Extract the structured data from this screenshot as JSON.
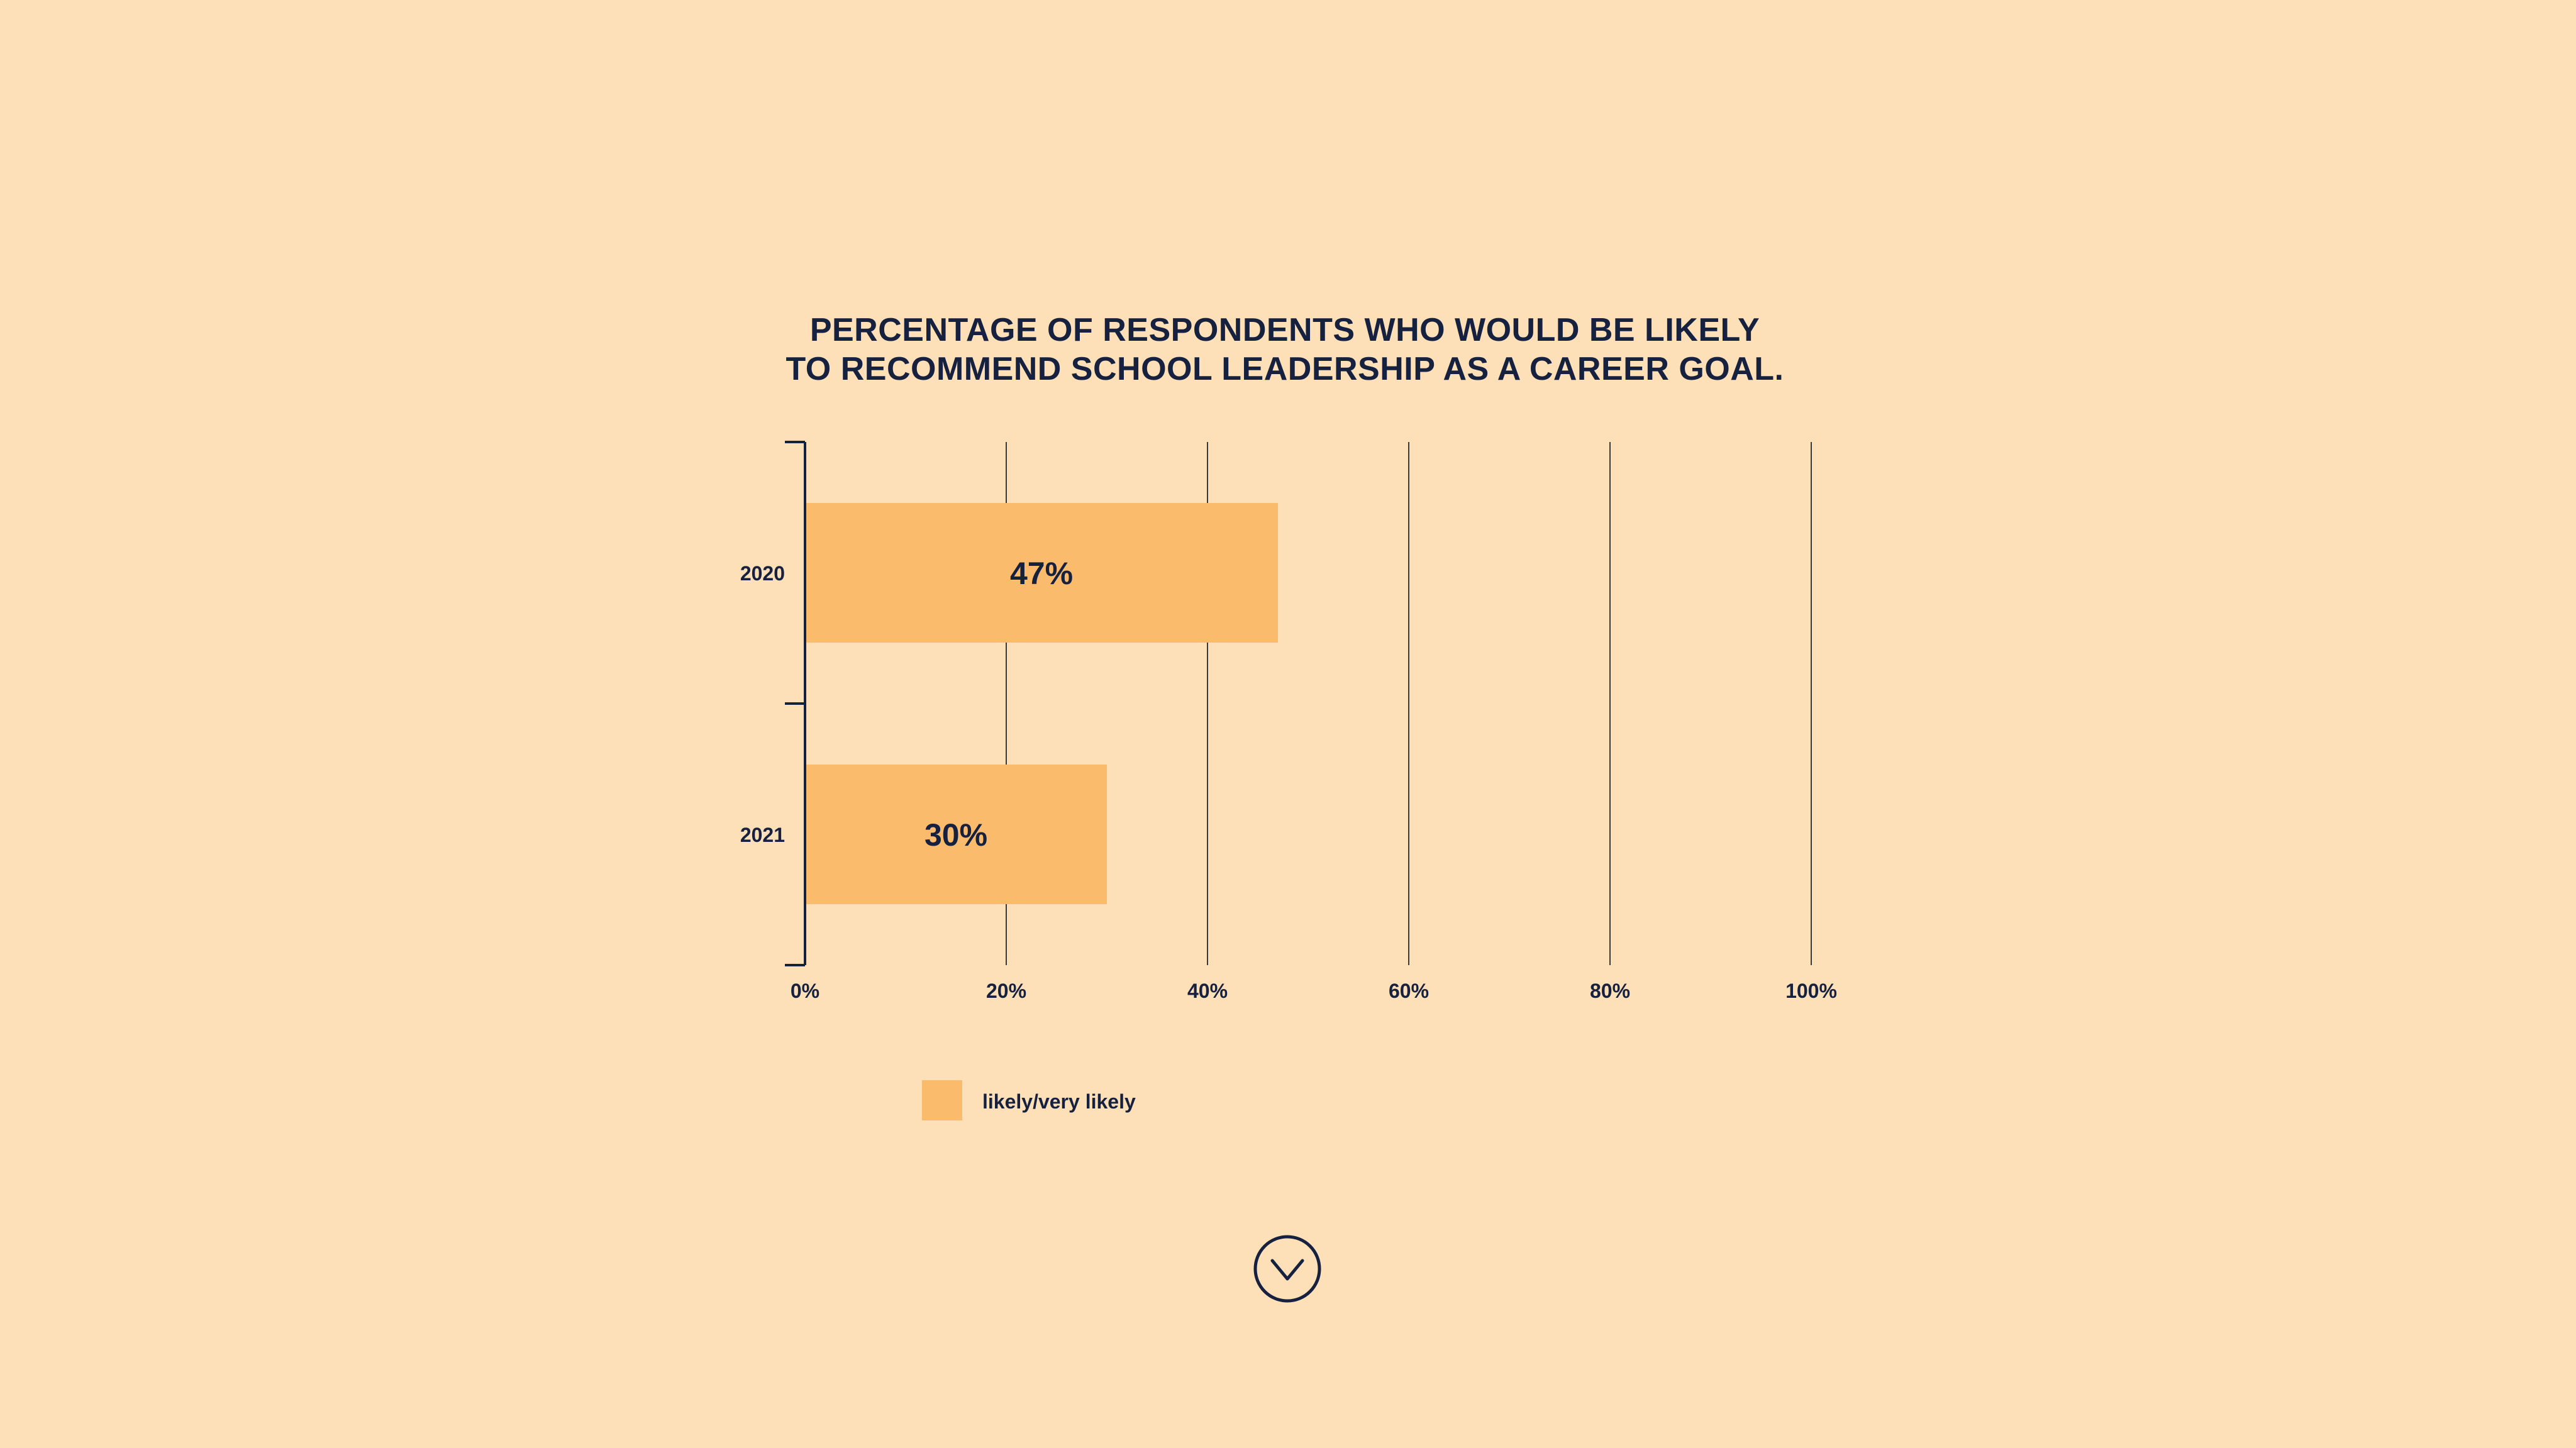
{
  "chart_data": {
    "type": "bar",
    "orientation": "horizontal",
    "title_lines": [
      "PERCENTAGE OF RESPONDENTS WHO WOULD BE LIKELY",
      "TO RECOMMEND SCHOOL LEADERSHIP AS A CAREER GOAL."
    ],
    "categories": [
      "2020",
      "2021"
    ],
    "series": [
      {
        "name": "likely/very likely",
        "values": [
          47,
          30
        ],
        "labels": [
          "47%",
          "30%"
        ],
        "color": "#FBBB6C"
      }
    ],
    "xlim": [
      0,
      100
    ],
    "x_ticks": [
      0,
      20,
      40,
      60,
      80,
      100
    ],
    "x_tick_labels": [
      "0%",
      "20%",
      "40%",
      "60%",
      "80%",
      "100%"
    ],
    "grid": true,
    "legend_position": "bottom-left"
  },
  "colors": {
    "background": "#FDDFB8",
    "text": "#15213F",
    "bar": "#FBBB6C",
    "gridline": "#3A3A3A"
  },
  "scroll_button": {
    "icon": "chevron-down-circle-icon"
  }
}
